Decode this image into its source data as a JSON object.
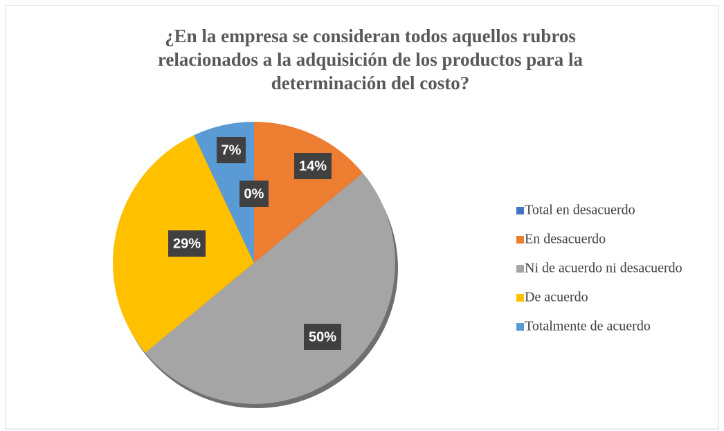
{
  "chart_data": {
    "type": "pie",
    "title_lines": [
      "¿En la empresa se consideran todos aquellos rubros",
      "relacionados a la adquisición de los productos para la",
      "determinación del costo?"
    ],
    "categories": [
      "Total en desacuerdo",
      "En desacuerdo",
      "Ni de acuerdo ni desacuerdo",
      "De acuerdo",
      "Totalmente de acuerdo"
    ],
    "values": [
      0,
      14,
      50,
      29,
      7
    ],
    "value_labels": [
      "0%",
      "14%",
      "50%",
      "29%",
      "7%"
    ],
    "colors": [
      "#4472c4",
      "#ed7d31",
      "#a5a5a5",
      "#ffc000",
      "#5b9bd5"
    ],
    "legend": "right"
  }
}
